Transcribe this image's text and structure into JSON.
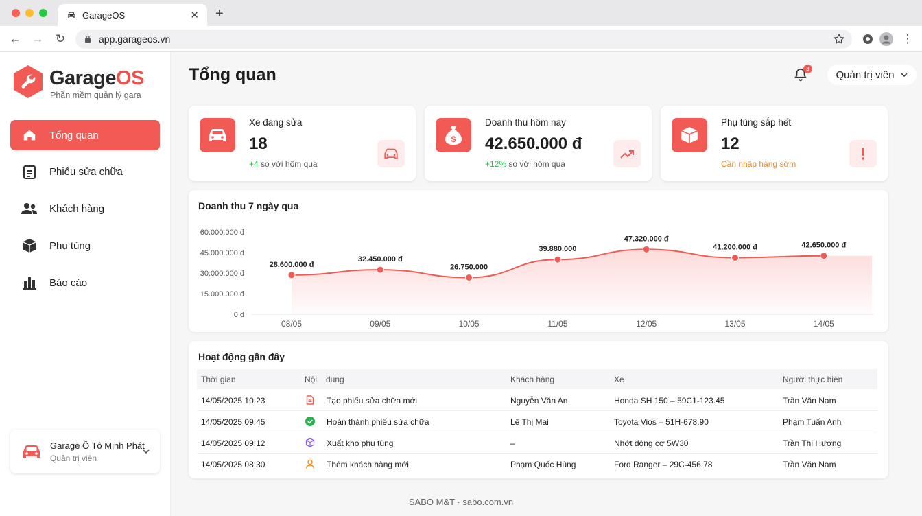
{
  "browser": {
    "tab_title": "GarageOS",
    "url": "app.garageos.vn"
  },
  "sidebar": {
    "brand_garage": "Garage",
    "brand_os": "OS",
    "tagline": "Phần mềm quản lý gara",
    "items": [
      {
        "label": "Tổng quan",
        "icon": "home-icon",
        "active": true
      },
      {
        "label": "Phiếu sửa chữa",
        "icon": "clipboard-icon"
      },
      {
        "label": "Khách hàng",
        "icon": "users-icon"
      },
      {
        "label": "Phụ tùng",
        "icon": "box-icon"
      },
      {
        "label": "Báo cáo",
        "icon": "bar-chart-icon"
      }
    ],
    "garage": {
      "name": "Garage Ô Tô Minh Phát",
      "role": "Quản trị viên"
    }
  },
  "header": {
    "title": "Tổng quan",
    "notification_count": "3",
    "user_label": "Quản trị viên"
  },
  "stats": [
    {
      "label": "Xe đang sửa",
      "value": "18",
      "delta": "+4",
      "delta_text": " so với hôm qua",
      "icon": "car-icon",
      "side_icon": "car-icon"
    },
    {
      "label": "Doanh thu hôm nay",
      "value": "42.650.000 đ",
      "delta": "+12%",
      "delta_text": " so với hôm qua",
      "icon": "money-bag-icon",
      "side_icon": "trend-up-icon"
    },
    {
      "label": "Phụ tùng sắp hết",
      "value": "12",
      "note": "Cần nhập hàng sớm",
      "icon": "package-icon",
      "side_icon": "exclamation-icon"
    }
  ],
  "chart_data": {
    "type": "area",
    "title": "Doanh thu 7 ngày qua",
    "categories": [
      "08/05",
      "09/05",
      "10/05",
      "11/05",
      "12/05",
      "13/05",
      "14/05"
    ],
    "values": [
      28600000,
      32450000,
      26750000,
      39880000,
      47320000,
      41200000,
      42650000
    ],
    "data_labels": [
      "28.600.000 đ",
      "32.450.000 đ",
      "26.750.000",
      "39.880.000",
      "47.320.000 đ",
      "41.200.000 đ",
      "42.650.000 đ"
    ],
    "y_ticks": [
      "0 đ",
      "15.000.000 đ",
      "30.000.000 đ",
      "45.000.000 đ",
      "60.000.000 đ"
    ],
    "ylim": [
      0,
      60000000
    ],
    "color": "#f25b55"
  },
  "activity": {
    "title": "Hoạt động gần đây",
    "headers": [
      "Thời gian",
      "Nội",
      "dung",
      "Khách hàng",
      "Xe",
      "Người thực hiện"
    ],
    "rows": [
      {
        "time": "14/05/2025 10:23",
        "icon": "document-icon",
        "content": "Tạo phiếu sửa chữa mới",
        "customer": "Nguyễn Văn An",
        "vehicle": "Honda SH 150 – 59C1-123.45",
        "staff": "Trần Văn Nam"
      },
      {
        "time": "14/05/2025 09:45",
        "icon": "check-circle-icon",
        "content": "Hoàn thành phiếu sửa chữa",
        "customer": "Lê Thị Mai",
        "vehicle": "Toyota Vios – 51H-678.90",
        "staff": "Phạm Tuấn Anh"
      },
      {
        "time": "14/05/2025 09:12",
        "icon": "package-outline-icon",
        "content": "Xuất kho phụ tùng",
        "customer": "–",
        "vehicle": "Nhớt động cơ 5W30",
        "staff": "Trần Thị Hương"
      },
      {
        "time": "14/05/2025 08:30",
        "icon": "user-add-icon",
        "content": "Thêm khách hàng mới",
        "customer": "Phạm Quốc Hùng",
        "vehicle": "Ford Ranger – 29C-456.78",
        "staff": "Trần Văn Nam"
      }
    ]
  },
  "footer": "SABO M&T · sabo.com.vn"
}
